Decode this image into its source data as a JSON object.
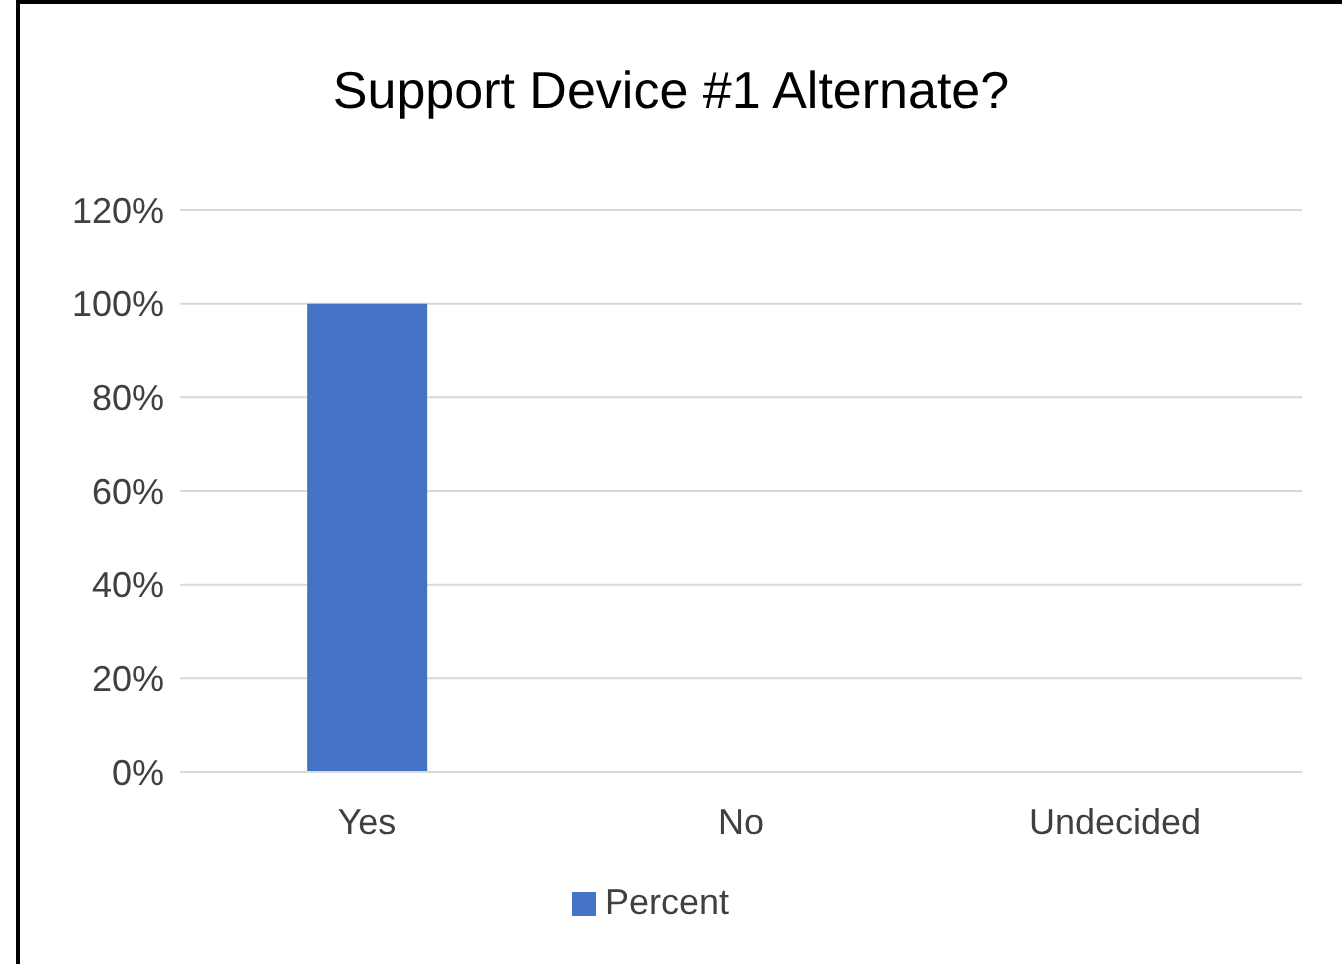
{
  "chart_data": {
    "type": "bar",
    "title": "Support Device #1 Alternate?",
    "categories": [
      "Yes",
      "No",
      "Undecided"
    ],
    "series": [
      {
        "name": "Percent",
        "color": "#4472c4",
        "values": [
          100,
          0,
          0
        ]
      }
    ],
    "ylim": [
      0,
      120
    ],
    "yticks": [
      {
        "value": 0,
        "label": "0%"
      },
      {
        "value": 20,
        "label": "20%"
      },
      {
        "value": 40,
        "label": "40%"
      },
      {
        "value": 60,
        "label": "60%"
      },
      {
        "value": 80,
        "label": "80%"
      },
      {
        "value": 100,
        "label": "100%"
      },
      {
        "value": 120,
        "label": "120%"
      }
    ],
    "grid": "y",
    "legend": "bottom"
  }
}
